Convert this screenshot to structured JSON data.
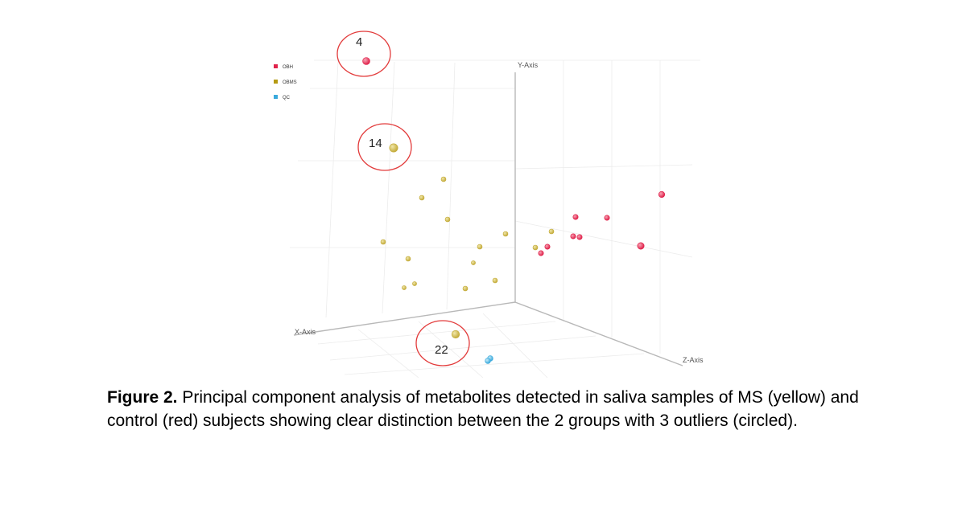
{
  "figure": {
    "caption_label": "Figure 2.",
    "caption_text": " Principal component analysis of metabolites detected in saliva samples of MS (yellow) and control (red) subjects showing clear distinction between the 2 groups with 3 outliers (circled)."
  },
  "chart_data": {
    "type": "scatter",
    "projection": "3d",
    "axis_labels": {
      "x": "X-Axis",
      "y": "Y-Axis",
      "z": "Z-Axis"
    },
    "grid": true,
    "legend_position": "top-left",
    "legend": [
      {
        "label": "OBH",
        "color": "#e0224b"
      },
      {
        "label": "OBMS",
        "color": "#b59a12"
      },
      {
        "label": "QC",
        "color": "#3aa9dc"
      }
    ],
    "outlier_labels": [
      "4",
      "14",
      "22"
    ],
    "series": [
      {
        "name": "OBH",
        "color": "#e0224b",
        "highlight": "#f7a4b5"
      },
      {
        "name": "OBMS",
        "color": "#c4ac3c",
        "highlight": "#f1e7a9"
      },
      {
        "name": "QC",
        "color": "#3aa9dc",
        "highlight": "#c7ecfa"
      }
    ]
  }
}
